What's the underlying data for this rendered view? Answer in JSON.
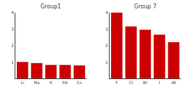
{
  "chart_data": [
    {
      "type": "bar",
      "title": "Group1",
      "categories": [
        "Li",
        "Na",
        "K",
        "Rb",
        "Cs"
      ],
      "values": [
        1.0,
        0.93,
        0.82,
        0.82,
        0.79
      ],
      "color": "#cc0000",
      "ylim": [
        0,
        4
      ],
      "yticks": [
        1,
        2,
        3,
        4
      ],
      "grid": false
    },
    {
      "type": "bar",
      "title": "Group 7",
      "categories": [
        "F",
        "Cl",
        "Br",
        "I",
        "At"
      ],
      "values": [
        4.0,
        3.16,
        2.96,
        2.66,
        2.2
      ],
      "color": "#cc0000",
      "ylim": [
        0,
        4
      ],
      "yticks": [
        1,
        2,
        3,
        4
      ],
      "grid": false
    }
  ]
}
